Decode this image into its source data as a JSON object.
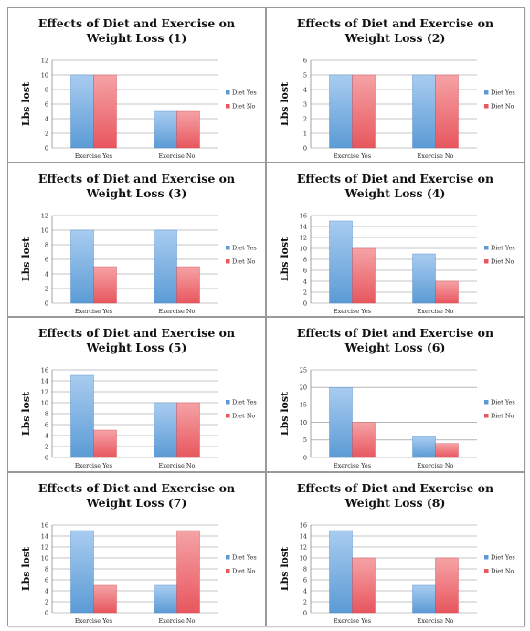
{
  "colors": {
    "diet_yes": "#5b9bd5",
    "diet_no": "#e8565e",
    "grid": "#8c8c8c"
  },
  "chart_data": [
    {
      "type": "bar",
      "title": "Effects of Diet and Exercise on Weight Loss (1)",
      "ylabel": "Lbs lost",
      "categories": [
        "Exercise Yes",
        "Exercise No"
      ],
      "series": [
        {
          "name": "Diet Yes",
          "values": [
            10,
            5
          ]
        },
        {
          "name": "Diet No",
          "values": [
            10,
            5
          ]
        }
      ],
      "ylim": [
        0,
        12
      ],
      "ystep": 2,
      "grid": true,
      "legend": "right"
    },
    {
      "type": "bar",
      "title": "Effects of Diet and Exercise on Weight Loss (2)",
      "ylabel": "Lbs lost",
      "categories": [
        "Exercise Yes",
        "Exercise No"
      ],
      "series": [
        {
          "name": "Diet Yes",
          "values": [
            5,
            5
          ]
        },
        {
          "name": "Diet No",
          "values": [
            5,
            5
          ]
        }
      ],
      "ylim": [
        0,
        6
      ],
      "ystep": 1,
      "grid": true,
      "legend": "right"
    },
    {
      "type": "bar",
      "title": "Effects of Diet and Exercise on Weight Loss (3)",
      "ylabel": "Lbs lost",
      "categories": [
        "Exercise Yes",
        "Exercise No"
      ],
      "series": [
        {
          "name": "Diet Yes",
          "values": [
            10,
            10
          ]
        },
        {
          "name": "Diet No",
          "values": [
            5,
            5
          ]
        }
      ],
      "ylim": [
        0,
        12
      ],
      "ystep": 2,
      "grid": true,
      "legend": "right"
    },
    {
      "type": "bar",
      "title": "Effects of Diet and Exercise on Weight Loss (4)",
      "ylabel": "Lbs lost",
      "categories": [
        "Exercise Yes",
        "Exercise No"
      ],
      "series": [
        {
          "name": "Diet Yes",
          "values": [
            15,
            9
          ]
        },
        {
          "name": "Diet No",
          "values": [
            10,
            4
          ]
        }
      ],
      "ylim": [
        0,
        16
      ],
      "ystep": 2,
      "grid": true,
      "legend": "right"
    },
    {
      "type": "bar",
      "title": "Effects of Diet and Exercise on Weight Loss (5)",
      "ylabel": "Lbs lost",
      "categories": [
        "Exercise Yes",
        "Exercise No"
      ],
      "series": [
        {
          "name": "Diet Yes",
          "values": [
            15,
            10
          ]
        },
        {
          "name": "Diet No",
          "values": [
            5,
            10
          ]
        }
      ],
      "ylim": [
        0,
        16
      ],
      "ystep": 2,
      "grid": true,
      "legend": "right"
    },
    {
      "type": "bar",
      "title": "Effects of Diet and Exercise on Weight Loss (6)",
      "ylabel": "Lbs lost",
      "categories": [
        "Exercise Yes",
        "Exercise No"
      ],
      "series": [
        {
          "name": "Diet Yes",
          "values": [
            20,
            6
          ]
        },
        {
          "name": "Diet No",
          "values": [
            10,
            4
          ]
        }
      ],
      "ylim": [
        0,
        25
      ],
      "ystep": 5,
      "grid": true,
      "legend": "right"
    },
    {
      "type": "bar",
      "title": "Effects of Diet and Exercise on Weight Loss (7)",
      "ylabel": "Lbs lost",
      "categories": [
        "Exercise Yes",
        "Exercise No"
      ],
      "series": [
        {
          "name": "Diet Yes",
          "values": [
            15,
            5
          ]
        },
        {
          "name": "Diet No",
          "values": [
            5,
            15
          ]
        }
      ],
      "ylim": [
        0,
        16
      ],
      "ystep": 2,
      "grid": true,
      "legend": "right"
    },
    {
      "type": "bar",
      "title": "Effects of Diet and Exercise on Weight Loss (8)",
      "ylabel": "Lbs lost",
      "categories": [
        "Exercise Yes",
        "Exercise No"
      ],
      "series": [
        {
          "name": "Diet Yes",
          "values": [
            15,
            5
          ]
        },
        {
          "name": "Diet No",
          "values": [
            10,
            10
          ]
        }
      ],
      "ylim": [
        0,
        16
      ],
      "ystep": 2,
      "grid": true,
      "legend": "right"
    }
  ]
}
